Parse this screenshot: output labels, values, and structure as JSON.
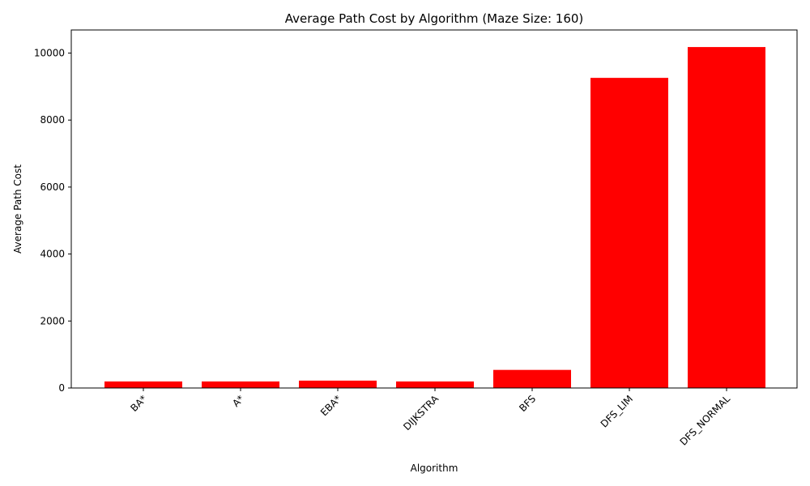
{
  "chart_data": {
    "type": "bar",
    "title": "Average Path Cost by Algorithm (Maze Size: 160)",
    "xlabel": "Algorithm",
    "ylabel": "Average Path Cost",
    "categories": [
      "BA*",
      "A*",
      "EBA*",
      "DIJKSTRA",
      "BFS",
      "DFS_LIM",
      "DFS_NORMAL"
    ],
    "values": [
      195,
      195,
      220,
      195,
      540,
      9260,
      10180
    ],
    "ylim": [
      0,
      10690
    ],
    "yticks": [
      0,
      2000,
      4000,
      6000,
      8000,
      10000
    ],
    "bar_color": "#ff0000",
    "grid": false,
    "x_tick_rotation_deg": 45
  }
}
